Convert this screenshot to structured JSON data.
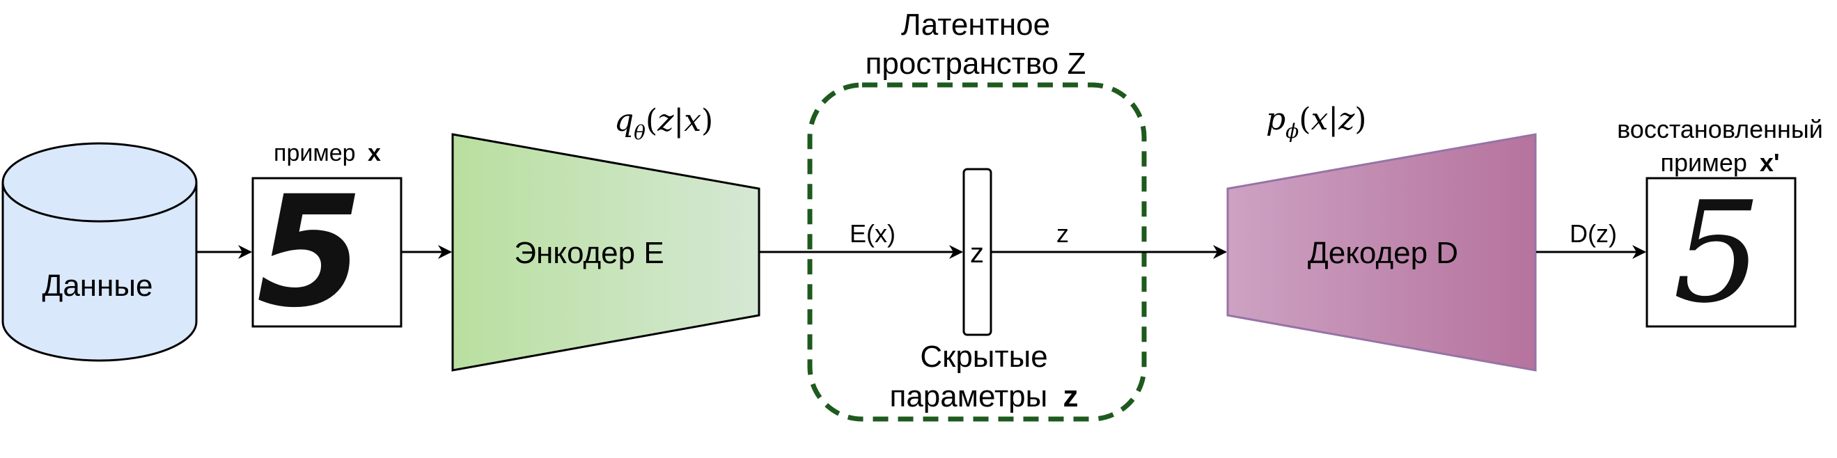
{
  "diagram": {
    "data_store": {
      "label": "Данные"
    },
    "input_sample": {
      "prefix": "пример",
      "var": "x",
      "digit": "5"
    },
    "encoder": {
      "label": "Энкодер E",
      "formula": "qθ(z|x)"
    },
    "encoder_output_label": "E(x)",
    "latent_space": {
      "title_line1": "Латентное",
      "title_line2": "пространство Z",
      "border_color": "#1e5a1e"
    },
    "latent_node": {
      "label": "z"
    },
    "latent_output_label": "z",
    "hidden_params": {
      "line1": "Скрытые",
      "line2_prefix": "параметры",
      "line2_var": "z"
    },
    "decoder": {
      "label": "Декодер D",
      "formula": "pϕ(x|z)"
    },
    "decoder_output_label": "D(z)",
    "output_sample": {
      "line1": "восстановленный",
      "line2_prefix": "пример",
      "line2_var": "x'",
      "digit": "5"
    },
    "colors": {
      "data_fill": "#dae8fc",
      "encoder_gradient": [
        "#b9df9f",
        "#d5e8d4"
      ],
      "decoder_gradient": [
        "#cda2c3",
        "#b5739d"
      ],
      "decoder_stroke": "#9673a6"
    }
  }
}
